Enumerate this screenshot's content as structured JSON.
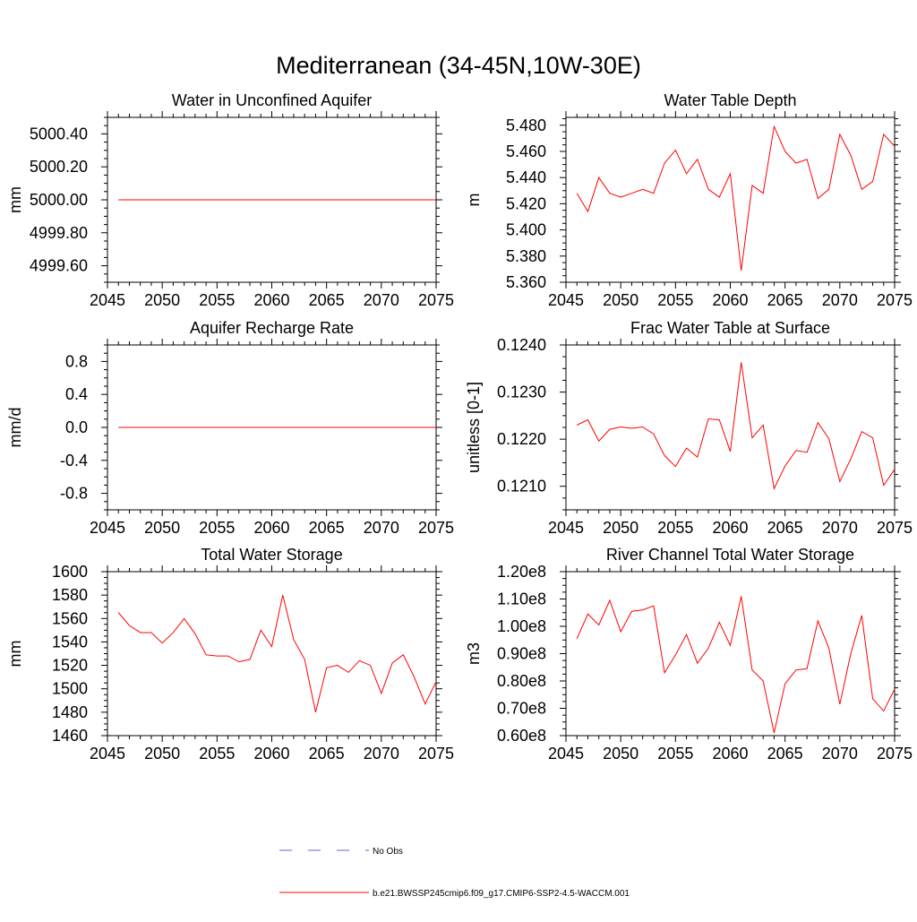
{
  "page_title": "Mediterranean (34-45N,10W-30E)",
  "colors": {
    "model": "#ff0000",
    "obs": "#6666cc",
    "axis": "#000000"
  },
  "legend": {
    "obs_label": "No Obs",
    "model_label": "b.e21.BWSSP245cmip6.f09_g17.CMIP6-SSP2-4.5-WACCM.001"
  },
  "chart_data": [
    {
      "type": "line",
      "title": "Water in Unconfined Aquifer",
      "xlabel": "",
      "ylabel": "mm",
      "xlim": [
        2045,
        2075
      ],
      "ylim": [
        4999.5,
        5000.5
      ],
      "xticks": [
        2045,
        2050,
        2055,
        2060,
        2065,
        2070,
        2075
      ],
      "xtick_labels": [
        "2045",
        "2050",
        "2055",
        "2060",
        "2065",
        "2070",
        "2075"
      ],
      "yticks": [
        4999.6,
        4999.8,
        5000.0,
        5000.2,
        5000.4
      ],
      "ytick_labels": [
        "4999.60",
        "4999.80",
        "5000.00",
        "5000.20",
        "5000.40"
      ],
      "x": [
        2046,
        2047,
        2048,
        2049,
        2050,
        2051,
        2052,
        2053,
        2054,
        2055,
        2056,
        2057,
        2058,
        2059,
        2060,
        2061,
        2062,
        2063,
        2064,
        2065,
        2066,
        2067,
        2068,
        2069,
        2070,
        2071,
        2072,
        2073,
        2074,
        2075
      ],
      "series": [
        {
          "name": "b.e21.BWSSP245cmip6.f09_g17.CMIP6-SSP2-4.5-WACCM.001",
          "values": [
            5000,
            5000,
            5000,
            5000,
            5000,
            5000,
            5000,
            5000,
            5000,
            5000,
            5000,
            5000,
            5000,
            5000,
            5000,
            5000,
            5000,
            5000,
            5000,
            5000,
            5000,
            5000,
            5000,
            5000,
            5000,
            5000,
            5000,
            5000,
            5000,
            5000
          ]
        }
      ]
    },
    {
      "type": "line",
      "title": "Water Table Depth",
      "xlabel": "",
      "ylabel": "m",
      "xlim": [
        2045,
        2075
      ],
      "ylim": [
        5.36,
        5.486
      ],
      "xticks": [
        2045,
        2050,
        2055,
        2060,
        2065,
        2070,
        2075
      ],
      "xtick_labels": [
        "2045",
        "2050",
        "2055",
        "2060",
        "2065",
        "2070",
        "2075"
      ],
      "yticks": [
        5.36,
        5.38,
        5.4,
        5.42,
        5.44,
        5.46,
        5.48
      ],
      "ytick_labels": [
        "5.360",
        "5.380",
        "5.400",
        "5.420",
        "5.440",
        "5.460",
        "5.480"
      ],
      "x": [
        2046,
        2047,
        2048,
        2049,
        2050,
        2051,
        2052,
        2053,
        2054,
        2055,
        2056,
        2057,
        2058,
        2059,
        2060,
        2061,
        2062,
        2063,
        2064,
        2065,
        2066,
        2067,
        2068,
        2069,
        2070,
        2071,
        2072,
        2073,
        2074,
        2075
      ],
      "series": [
        {
          "name": "b.e21.BWSSP245cmip6.f09_g17.CMIP6-SSP2-4.5-WACCM.001",
          "values": [
            5.428,
            5.414,
            5.44,
            5.428,
            5.425,
            5.428,
            5.431,
            5.428,
            5.451,
            5.461,
            5.443,
            5.454,
            5.431,
            5.425,
            5.443,
            5.369,
            5.434,
            5.428,
            5.479,
            5.46,
            5.451,
            5.454,
            5.424,
            5.431,
            5.473,
            5.457,
            5.431,
            5.437,
            5.473,
            5.464
          ]
        }
      ]
    },
    {
      "type": "line",
      "title": "Aquifer Recharge Rate",
      "xlabel": "",
      "ylabel": "mm/d",
      "xlim": [
        2045,
        2075
      ],
      "ylim": [
        -1.0,
        1.0
      ],
      "xticks": [
        2045,
        2050,
        2055,
        2060,
        2065,
        2070,
        2075
      ],
      "xtick_labels": [
        "2045",
        "2050",
        "2055",
        "2060",
        "2065",
        "2070",
        "2075"
      ],
      "yticks": [
        -0.8,
        -0.4,
        0.0,
        0.4,
        0.8
      ],
      "ytick_labels": [
        "-0.8",
        "-0.4",
        "0.0",
        "0.4",
        "0.8"
      ],
      "x": [
        2046,
        2047,
        2048,
        2049,
        2050,
        2051,
        2052,
        2053,
        2054,
        2055,
        2056,
        2057,
        2058,
        2059,
        2060,
        2061,
        2062,
        2063,
        2064,
        2065,
        2066,
        2067,
        2068,
        2069,
        2070,
        2071,
        2072,
        2073,
        2074,
        2075
      ],
      "series": [
        {
          "name": "b.e21.BWSSP245cmip6.f09_g17.CMIP6-SSP2-4.5-WACCM.001",
          "values": [
            0,
            0,
            0,
            0,
            0,
            0,
            0,
            0,
            0,
            0,
            0,
            0,
            0,
            0,
            0,
            0,
            0,
            0,
            0,
            0,
            0,
            0,
            0,
            0,
            0,
            0,
            0,
            0,
            0,
            0
          ]
        }
      ]
    },
    {
      "type": "line",
      "title": "Frac Water Table at Surface",
      "xlabel": "",
      "ylabel": "unitless [0-1]",
      "xlim": [
        2045,
        2075
      ],
      "ylim": [
        0.1205,
        0.124
      ],
      "xticks": [
        2045,
        2050,
        2055,
        2060,
        2065,
        2070,
        2075
      ],
      "xtick_labels": [
        "2045",
        "2050",
        "2055",
        "2060",
        "2065",
        "2070",
        "2075"
      ],
      "yticks": [
        0.121,
        0.122,
        0.123,
        0.124
      ],
      "ytick_labels": [
        "0.1210",
        "0.1220",
        "0.1230",
        "0.1240"
      ],
      "x": [
        2046,
        2047,
        2048,
        2049,
        2050,
        2051,
        2052,
        2053,
        2054,
        2055,
        2056,
        2057,
        2058,
        2059,
        2060,
        2061,
        2062,
        2063,
        2064,
        2065,
        2066,
        2067,
        2068,
        2069,
        2070,
        2071,
        2072,
        2073,
        2074,
        2075
      ],
      "series": [
        {
          "name": "b.e21.BWSSP245cmip6.f09_g17.CMIP6-SSP2-4.5-WACCM.001",
          "values": [
            0.1223,
            0.12241,
            0.12196,
            0.12221,
            0.12226,
            0.12223,
            0.12226,
            0.12211,
            0.12165,
            0.12142,
            0.12181,
            0.12162,
            0.12243,
            0.12241,
            0.12174,
            0.12363,
            0.12203,
            0.1223,
            0.12095,
            0.12143,
            0.12176,
            0.12172,
            0.12235,
            0.12201,
            0.1211,
            0.12158,
            0.12216,
            0.12203,
            0.12102,
            0.12136
          ]
        }
      ]
    },
    {
      "type": "line",
      "title": "Total Water Storage",
      "xlabel": "",
      "ylabel": "mm",
      "xlim": [
        2045,
        2075
      ],
      "ylim": [
        1460,
        1600
      ],
      "xticks": [
        2045,
        2050,
        2055,
        2060,
        2065,
        2070,
        2075
      ],
      "xtick_labels": [
        "2045",
        "2050",
        "2055",
        "2060",
        "2065",
        "2070",
        "2075"
      ],
      "yticks": [
        1460,
        1480,
        1500,
        1520,
        1540,
        1560,
        1580,
        1600
      ],
      "ytick_labels": [
        "1460",
        "1480",
        "1500",
        "1520",
        "1540",
        "1560",
        "1580",
        "1600"
      ],
      "x": [
        2046,
        2047,
        2048,
        2049,
        2050,
        2051,
        2052,
        2053,
        2054,
        2055,
        2056,
        2057,
        2058,
        2059,
        2060,
        2061,
        2062,
        2063,
        2064,
        2065,
        2066,
        2067,
        2068,
        2069,
        2070,
        2071,
        2072,
        2073,
        2074,
        2075
      ],
      "series": [
        {
          "name": "b.e21.BWSSP245cmip6.f09_g17.CMIP6-SSP2-4.5-WACCM.001",
          "values": [
            1565,
            1554,
            1548,
            1548,
            1539,
            1548,
            1560,
            1547,
            1529,
            1528,
            1528,
            1523,
            1525,
            1550,
            1536,
            1580,
            1542,
            1525,
            1480,
            1518,
            1520,
            1514,
            1524,
            1520,
            1496,
            1522,
            1529,
            1510,
            1487,
            1506
          ]
        }
      ]
    },
    {
      "type": "line",
      "title": "River Channel Total Water Storage",
      "xlabel": "",
      "ylabel": "m3",
      "xlim": [
        2045,
        2075
      ],
      "ylim": [
        60000000.0,
        120000000.0
      ],
      "xticks": [
        2045,
        2050,
        2055,
        2060,
        2065,
        2070,
        2075
      ],
      "xtick_labels": [
        "2045",
        "2050",
        "2055",
        "2060",
        "2065",
        "2070",
        "2075"
      ],
      "yticks": [
        60000000.0,
        70000000.0,
        80000000.0,
        90000000.0,
        100000000.0,
        110000000.0,
        120000000.0
      ],
      "ytick_labels": [
        "0.60e8",
        "0.70e8",
        "0.80e8",
        "0.90e8",
        "1.00e8",
        "1.10e8",
        "1.20e8"
      ],
      "x": [
        2046,
        2047,
        2048,
        2049,
        2050,
        2051,
        2052,
        2053,
        2054,
        2055,
        2056,
        2057,
        2058,
        2059,
        2060,
        2061,
        2062,
        2063,
        2064,
        2065,
        2066,
        2067,
        2068,
        2069,
        2070,
        2071,
        2072,
        2073,
        2074,
        2075
      ],
      "series": [
        {
          "name": "b.e21.BWSSP245cmip6.f09_g17.CMIP6-SSP2-4.5-WACCM.001",
          "values": [
            95500000.0,
            104500000.0,
            100500000.0,
            109500000.0,
            98000000.0,
            105500000.0,
            106000000.0,
            107500000.0,
            83000000.0,
            89500000.0,
            97000000.0,
            86500000.0,
            92000000.0,
            101500000.0,
            93000000.0,
            111000000.0,
            84000000.0,
            80000000.0,
            61000000.0,
            79000000.0,
            84000000.0,
            84500000.0,
            102000000.0,
            92000000.0,
            71500000.0,
            90000000.0,
            104000000.0,
            73500000.0,
            69000000.0,
            77000000.0
          ]
        }
      ]
    }
  ]
}
